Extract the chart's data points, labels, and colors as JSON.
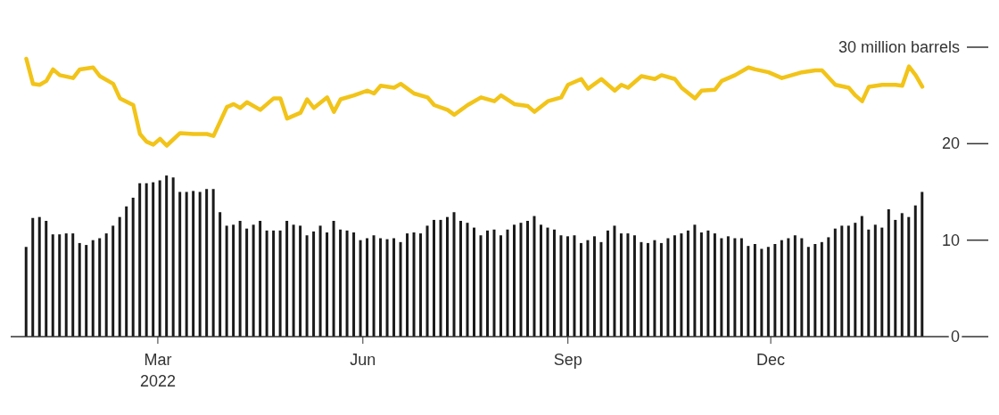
{
  "chart_data": {
    "type": "bar",
    "x": [
      "2022-01-01",
      "2022-01-04",
      "2022-01-07",
      "2022-01-10",
      "2022-01-13",
      "2022-01-16",
      "2022-01-19",
      "2022-01-22",
      "2022-01-25",
      "2022-01-28",
      "2022-01-31",
      "2022-02-03",
      "2022-02-06",
      "2022-02-09",
      "2022-02-12",
      "2022-02-15",
      "2022-02-18",
      "2022-02-21",
      "2022-02-24",
      "2022-02-27",
      "2022-03-02",
      "2022-03-05",
      "2022-03-08",
      "2022-03-11",
      "2022-03-14",
      "2022-03-17",
      "2022-03-20",
      "2022-03-23",
      "2022-03-26",
      "2022-03-29",
      "2022-04-01",
      "2022-04-04",
      "2022-04-07",
      "2022-04-10",
      "2022-04-13",
      "2022-04-16",
      "2022-04-19",
      "2022-04-22",
      "2022-04-25",
      "2022-04-28",
      "2022-05-01",
      "2022-05-04",
      "2022-05-07",
      "2022-05-10",
      "2022-05-13",
      "2022-05-16",
      "2022-05-19",
      "2022-05-22",
      "2022-05-25",
      "2022-05-28",
      "2022-05-31",
      "2022-06-03",
      "2022-06-06",
      "2022-06-09",
      "2022-06-12",
      "2022-06-15",
      "2022-06-18",
      "2022-06-21",
      "2022-06-24",
      "2022-06-27",
      "2022-06-30",
      "2022-07-03",
      "2022-07-06",
      "2022-07-09",
      "2022-07-12",
      "2022-07-15",
      "2022-07-18",
      "2022-07-21",
      "2022-07-24",
      "2022-07-27",
      "2022-07-30",
      "2022-08-02",
      "2022-08-05",
      "2022-08-08",
      "2022-08-11",
      "2022-08-14",
      "2022-08-17",
      "2022-08-20",
      "2022-08-23",
      "2022-08-26",
      "2022-08-29",
      "2022-09-01",
      "2022-09-04",
      "2022-09-07",
      "2022-09-10",
      "2022-09-13",
      "2022-09-16",
      "2022-09-19",
      "2022-09-22",
      "2022-09-25",
      "2022-09-28",
      "2022-10-01",
      "2022-10-04",
      "2022-10-07",
      "2022-10-10",
      "2022-10-13",
      "2022-10-16",
      "2022-10-19",
      "2022-10-22",
      "2022-10-25",
      "2022-10-28",
      "2022-10-31",
      "2022-11-03",
      "2022-11-06",
      "2022-11-09",
      "2022-11-12",
      "2022-11-15",
      "2022-11-18",
      "2022-11-21",
      "2022-11-24",
      "2022-11-27",
      "2022-11-30",
      "2022-12-03",
      "2022-12-06",
      "2022-12-09",
      "2022-12-12",
      "2022-12-15",
      "2022-12-18",
      "2022-12-21",
      "2022-12-24",
      "2022-12-27",
      "2022-12-30",
      "2023-01-02",
      "2023-01-05",
      "2023-01-08",
      "2023-01-11",
      "2023-01-14",
      "2023-01-17",
      "2023-01-20",
      "2023-01-23",
      "2023-01-26",
      "2023-01-29",
      "2023-02-01",
      "2023-02-04",
      "2023-02-07"
    ],
    "series": [
      {
        "color": "#1a1a1a",
        "values": [
          9.3,
          12.3,
          12.4,
          12.0,
          10.6,
          10.6,
          10.7,
          10.7,
          9.7,
          9.5,
          10.0,
          10.2,
          10.7,
          11.5,
          12.4,
          13.5,
          14.4,
          15.9,
          15.9,
          16.0,
          16.2,
          16.7,
          16.5,
          15.0,
          15.0,
          15.1,
          15.0,
          15.3,
          15.3,
          12.9,
          11.5,
          11.6,
          12.0,
          11.2,
          11.6,
          12.0,
          11.0,
          11.0,
          11.0,
          12.0,
          11.6,
          11.5,
          10.5,
          10.9,
          11.5,
          10.8,
          12.0,
          11.1,
          11.0,
          10.8,
          10.0,
          10.2,
          10.5,
          10.2,
          10.1,
          10.2,
          9.8,
          10.7,
          10.8,
          10.7,
          11.5,
          12.1,
          12.1,
          12.4,
          12.9,
          12.0,
          11.8,
          11.3,
          10.5,
          11.0,
          11.1,
          10.5,
          11.1,
          11.6,
          11.8,
          12.0,
          12.5,
          11.6,
          11.3,
          11.1,
          10.5,
          10.4,
          10.5,
          9.7,
          10.0,
          10.4,
          9.8,
          11.0,
          11.5,
          10.7,
          10.7,
          10.5,
          9.8,
          9.7,
          10.0,
          9.7,
          10.2,
          10.5,
          10.7,
          11.0,
          11.6,
          10.8,
          11.0,
          10.7,
          10.2,
          10.4,
          10.2,
          10.2,
          9.4,
          9.6,
          9.1,
          9.3,
          9.6,
          10.0,
          10.2,
          10.5,
          10.2,
          9.3,
          9.6,
          9.8,
          10.3,
          11.2,
          11.5,
          11.5,
          11.8,
          12.5,
          11.1,
          11.6,
          11.3,
          13.2,
          12.1,
          12.8,
          12.4,
          13.6,
          15.0
        ]
      },
      {
        "type": "line",
        "color": "#f2c419",
        "x": [
          "2022-01-01",
          "2022-01-04",
          "2022-01-07",
          "2022-01-10",
          "2022-01-13",
          "2022-01-16",
          "2022-01-22",
          "2022-01-25",
          "2022-01-31",
          "2022-02-03",
          "2022-02-09",
          "2022-02-12",
          "2022-02-18",
          "2022-02-21",
          "2022-02-24",
          "2022-02-27",
          "2022-03-02",
          "2022-03-05",
          "2022-03-11",
          "2022-03-17",
          "2022-03-23",
          "2022-03-26",
          "2022-04-01",
          "2022-04-04",
          "2022-04-07",
          "2022-04-10",
          "2022-04-16",
          "2022-04-22",
          "2022-04-25",
          "2022-04-28",
          "2022-05-04",
          "2022-05-07",
          "2022-05-10",
          "2022-05-16",
          "2022-05-19",
          "2022-05-22",
          "2022-05-28",
          "2022-06-03",
          "2022-06-06",
          "2022-06-09",
          "2022-06-15",
          "2022-06-18",
          "2022-06-24",
          "2022-06-30",
          "2022-07-03",
          "2022-07-09",
          "2022-07-12",
          "2022-07-18",
          "2022-07-24",
          "2022-07-30",
          "2022-08-02",
          "2022-08-08",
          "2022-08-14",
          "2022-08-17",
          "2022-08-23",
          "2022-08-29",
          "2022-09-01",
          "2022-09-07",
          "2022-09-10",
          "2022-09-16",
          "2022-09-22",
          "2022-09-25",
          "2022-09-28",
          "2022-10-04",
          "2022-10-10",
          "2022-10-13",
          "2022-10-19",
          "2022-10-22",
          "2022-10-28",
          "2022-10-31",
          "2022-11-06",
          "2022-11-09",
          "2022-11-15",
          "2022-11-21",
          "2022-11-24",
          "2022-11-30",
          "2022-12-06",
          "2022-12-15",
          "2022-12-21",
          "2022-12-24",
          "2022-12-30",
          "2023-01-05",
          "2023-01-08",
          "2023-01-11",
          "2023-01-14",
          "2023-01-20",
          "2023-01-26",
          "2023-01-29",
          "2023-02-01",
          "2023-02-04",
          "2023-02-07"
        ],
        "values": [
          28.8,
          26.2,
          26.1,
          26.5,
          27.7,
          27.1,
          26.8,
          27.7,
          27.9,
          27.0,
          26.2,
          24.7,
          24.0,
          21.0,
          20.2,
          19.9,
          20.5,
          19.8,
          21.1,
          21.0,
          21.0,
          20.8,
          23.8,
          24.1,
          23.7,
          24.3,
          23.5,
          24.7,
          24.7,
          22.6,
          23.2,
          24.6,
          23.7,
          24.8,
          23.3,
          24.6,
          25.0,
          25.5,
          25.2,
          26.0,
          25.8,
          26.2,
          25.2,
          24.8,
          24.0,
          23.5,
          23.0,
          24.0,
          24.8,
          24.4,
          25.0,
          24.1,
          23.9,
          23.3,
          24.4,
          24.8,
          26.1,
          26.7,
          25.7,
          26.7,
          25.5,
          26.1,
          25.8,
          27.0,
          26.7,
          27.1,
          26.7,
          25.8,
          24.7,
          25.5,
          25.6,
          26.5,
          27.1,
          27.9,
          27.7,
          27.4,
          26.8,
          27.4,
          27.6,
          27.6,
          26.1,
          25.8,
          25.0,
          24.4,
          25.9,
          26.1,
          26.1,
          26.0,
          28.0,
          27.1,
          25.9
        ]
      }
    ],
    "xlim": [
      "2021-12-25",
      "2023-02-27"
    ],
    "xticks": [
      {
        "value": "2022-03-01",
        "label": "Mar\n2022"
      },
      {
        "value": "2022-06-01",
        "label": "Jun"
      },
      {
        "value": "2022-09-01",
        "label": "Sep"
      },
      {
        "value": "2022-12-01",
        "label": "Dec"
      }
    ],
    "ylim": [
      0,
      30
    ],
    "yticks": [
      0,
      10,
      20,
      {
        "value": 30,
        "label": "30 million barrels"
      }
    ]
  }
}
